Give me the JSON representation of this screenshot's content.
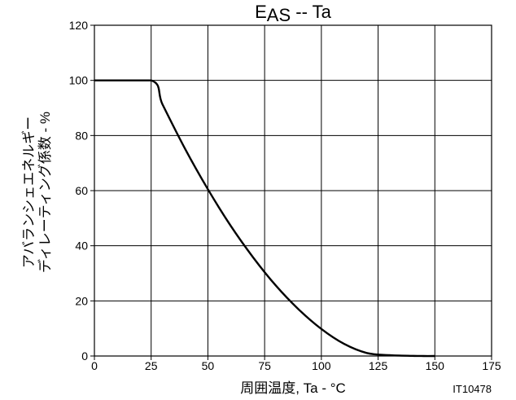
{
  "chart_data": {
    "type": "line",
    "title": "EAS -- Ta",
    "title_parts": {
      "main": "E",
      "sub": "AS",
      "rest": " -- Ta"
    },
    "xlabel": "周囲温度, Ta - °C",
    "ylabel_lines": [
      "アバランシェエネルギー",
      "ディレーティング係数 - %"
    ],
    "xlim": [
      0,
      175
    ],
    "ylim": [
      0,
      120
    ],
    "x_ticks": [
      0,
      25,
      50,
      75,
      100,
      125,
      150,
      175
    ],
    "y_ticks": [
      0,
      20,
      40,
      60,
      80,
      100,
      120
    ],
    "grid": true,
    "series": [
      {
        "x": [
          0,
          25,
          30,
          40,
          50,
          60,
          70,
          80,
          90,
          100,
          110,
          120,
          130,
          140,
          145,
          150
        ],
        "y": [
          100,
          100,
          91.3,
          75.1,
          60.5,
          47.3,
          35.7,
          25.5,
          16.9,
          9.8,
          4.4,
          1.1,
          0.3,
          0.05,
          0,
          0
        ]
      }
    ],
    "annotations": [
      "IT10478"
    ]
  }
}
